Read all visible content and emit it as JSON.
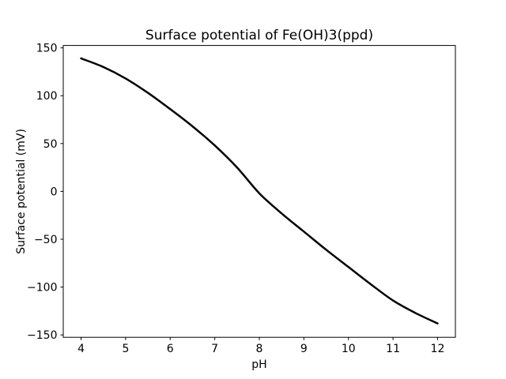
{
  "figure": {
    "background": "#ffffff",
    "text_color": "#000000"
  },
  "chart_data": {
    "type": "line",
    "title": "Surface potential of Fe(OH)3(ppd)",
    "xlabel": "pH",
    "ylabel": "Surface potential (mV)",
    "xlim": [
      3.6,
      12.4
    ],
    "ylim": [
      -152.5,
      152.5
    ],
    "xticks": [
      4,
      5,
      6,
      7,
      8,
      9,
      10,
      11,
      12
    ],
    "xticklabels": [
      "4",
      "5",
      "6",
      "7",
      "8",
      "9",
      "10",
      "11",
      "12"
    ],
    "yticks": [
      150,
      100,
      50,
      0,
      -50,
      -100,
      -150
    ],
    "yticklabels": [
      "150",
      "100",
      "50",
      "0",
      "−50",
      "−100",
      "−150"
    ],
    "grid": false,
    "legend": false,
    "series": [
      {
        "name": "surface-potential-curve",
        "color": "#000000",
        "linewidth": 2.5,
        "x": [
          4.0,
          4.5,
          5.0,
          5.5,
          6.0,
          6.5,
          7.0,
          7.5,
          8.0,
          8.5,
          9.0,
          9.5,
          10.0,
          10.5,
          11.0,
          11.5,
          12.0
        ],
        "y": [
          139,
          130,
          118,
          103,
          86,
          68,
          48,
          25,
          -2,
          -23,
          -42,
          -61,
          -79,
          -97,
          -114,
          -127,
          -138
        ]
      }
    ]
  }
}
